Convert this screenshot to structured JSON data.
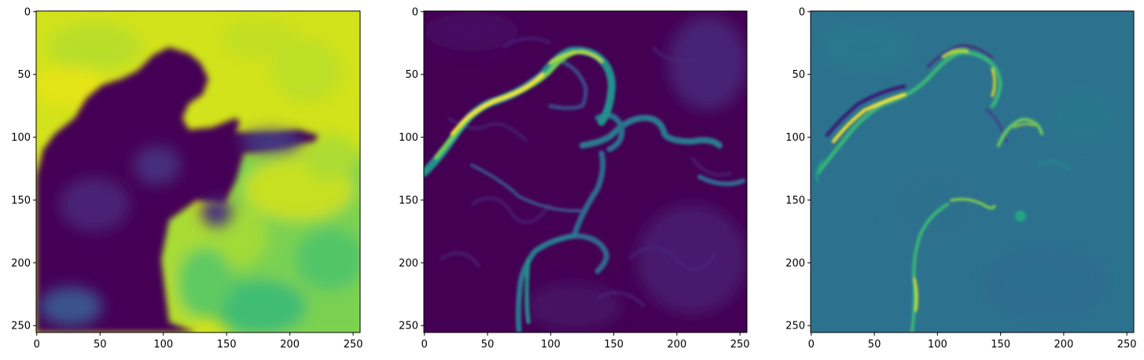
{
  "chart_data": [
    {
      "type": "heatmap",
      "colormap": "viridis",
      "image_shape": [
        256,
        256
      ],
      "xlim": [
        0,
        255
      ],
      "ylim": [
        255,
        0
      ],
      "xticks": [
        0,
        50,
        100,
        150,
        200,
        250
      ],
      "yticks": [
        0,
        50,
        100,
        150,
        200,
        250
      ],
      "content": "blurred intensity map: bright yellow background at top and lower right, dark purple region on the left"
    },
    {
      "type": "heatmap",
      "colormap": "viridis",
      "image_shape": [
        256,
        256
      ],
      "xlim": [
        0,
        255
      ],
      "ylim": [
        255,
        0
      ],
      "xticks": [
        0,
        50,
        100,
        150,
        200,
        250
      ],
      "yticks": [
        0,
        50,
        100,
        150,
        200,
        250
      ],
      "content": "gradient magnitude: dark purple field with bright edge contours"
    },
    {
      "type": "heatmap",
      "colormap": "viridis",
      "image_shape": [
        256,
        256
      ],
      "xlim": [
        0,
        255
      ],
      "ylim": [
        255,
        0
      ],
      "xticks": [
        0,
        50,
        100,
        150,
        200,
        250
      ],
      "yticks": [
        0,
        50,
        100,
        150,
        200,
        250
      ],
      "content": "signed edge response: teal field with yellow and dark edge lines"
    }
  ],
  "colors": {
    "viridis_dark": "#440154",
    "viridis_purple": "#46085c",
    "viridis_blue": "#31688e",
    "viridis_teal": "#2a788e",
    "viridis_green": "#35b779",
    "viridis_lime": "#90d743",
    "viridis_yellow": "#fde725"
  }
}
